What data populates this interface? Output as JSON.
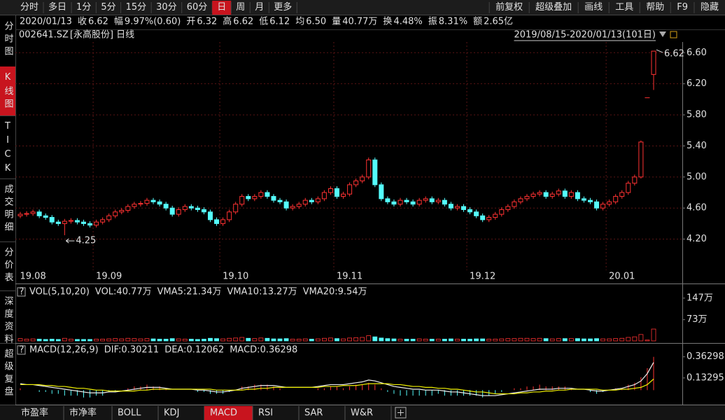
{
  "toolbar": {
    "periods": [
      "分时",
      "多日",
      "1分",
      "5分",
      "15分",
      "30分",
      "60分",
      "日",
      "周",
      "月",
      "更多"
    ],
    "active": 7,
    "tools": [
      "前复权",
      "超级叠加",
      "画线",
      "工具",
      "帮助",
      "F9",
      "隐藏"
    ]
  },
  "info": {
    "date": "2020/01/13",
    "items": [
      {
        "k": "收",
        "v": "6.62",
        "color": "#ff3232"
      },
      {
        "k": "幅",
        "v": "9.97%(0.60)",
        "color": "#ff3232"
      },
      {
        "k": "开",
        "v": "6.32",
        "color": "#ff3232"
      },
      {
        "k": "高",
        "v": "6.62",
        "color": "#ff3232"
      },
      {
        "k": "低",
        "v": "6.12",
        "color": "#ff3232"
      },
      {
        "k": "均",
        "v": "6.50",
        "color": "#ff3232"
      },
      {
        "k": "量",
        "v": "40.77万",
        "color": "#e0e0e0"
      },
      {
        "k": "换",
        "v": "4.48%",
        "color": "#e0e0e0"
      },
      {
        "k": "振",
        "v": "8.31%",
        "color": "#e0e0e0"
      },
      {
        "k": "额",
        "v": "2.65亿",
        "color": "#e0e0e0"
      }
    ]
  },
  "header": {
    "code": "002641.SZ",
    "name": "[永高股份]",
    "period": "日线",
    "range": "2019/08/15-2020/01/13(101日)"
  },
  "side_tabs": {
    "items": [
      "分时图",
      "K线图",
      "TICK",
      "成交明细",
      "分价表",
      "深度资料",
      "超级复盘"
    ],
    "active": 1
  },
  "bottom_tabs": {
    "items": [
      "市盈率",
      "市净率",
      "BOLL",
      "KDJ",
      "MACD",
      "RSI",
      "SAR",
      "W&R"
    ],
    "active": 4
  },
  "chart_data": [
    {
      "type": "candlestick",
      "up_color": "#ff3232",
      "down_color": "#54fcfc",
      "grid": true,
      "ylim": [
        3.8,
        6.9
      ],
      "yticks": [
        {
          "value": 4.2,
          "label": "4.20"
        },
        {
          "value": 4.6,
          "label": "4.60"
        },
        {
          "value": 5.0,
          "label": "5.00"
        },
        {
          "value": 5.4,
          "label": "5.40"
        },
        {
          "value": 5.8,
          "label": "5.80"
        },
        {
          "value": 6.2,
          "label": "6.20"
        },
        {
          "value": 6.6,
          "label": "6.60"
        }
      ],
      "xticks": [
        {
          "value": 0,
          "label": "19.08"
        },
        {
          "value": 12,
          "label": "19.09"
        },
        {
          "value": 32,
          "label": "19.10"
        },
        {
          "value": 50,
          "label": "19.11"
        },
        {
          "value": 71,
          "label": "19.12"
        },
        {
          "value": 93,
          "label": "20.01"
        }
      ],
      "open": [
        4.5,
        4.52,
        4.53,
        4.55,
        4.5,
        4.48,
        4.42,
        4.4,
        4.43,
        4.44,
        4.42,
        4.4,
        4.38,
        4.42,
        4.45,
        4.5,
        4.55,
        4.57,
        4.62,
        4.65,
        4.66,
        4.7,
        4.68,
        4.65,
        4.6,
        4.52,
        4.58,
        4.62,
        4.6,
        4.58,
        4.55,
        4.45,
        4.4,
        4.45,
        4.55,
        4.65,
        4.75,
        4.72,
        4.75,
        4.8,
        4.75,
        4.7,
        4.68,
        4.6,
        4.62,
        4.65,
        4.7,
        4.68,
        4.72,
        4.8,
        4.85,
        4.75,
        4.78,
        4.9,
        4.95,
        5.0,
        5.22,
        4.9,
        4.72,
        4.68,
        4.65,
        4.7,
        4.68,
        4.65,
        4.7,
        4.72,
        4.68,
        4.7,
        4.65,
        4.6,
        4.62,
        4.58,
        4.55,
        4.5,
        4.45,
        4.48,
        4.52,
        4.58,
        4.62,
        4.68,
        4.72,
        4.75,
        4.78,
        4.8,
        4.75,
        4.78,
        4.82,
        4.75,
        4.8,
        4.72,
        4.7,
        4.68,
        4.6,
        4.65,
        4.68,
        4.75,
        4.8,
        4.92,
        5.0,
        6.02,
        6.32
      ],
      "high": [
        4.55,
        4.56,
        4.58,
        4.58,
        4.53,
        4.51,
        4.45,
        4.46,
        4.47,
        4.47,
        4.45,
        4.43,
        4.45,
        4.48,
        4.53,
        4.58,
        4.6,
        4.65,
        4.68,
        4.69,
        4.73,
        4.73,
        4.71,
        4.68,
        4.63,
        4.61,
        4.65,
        4.65,
        4.63,
        4.61,
        4.58,
        4.48,
        4.48,
        4.58,
        4.68,
        4.78,
        4.78,
        4.78,
        4.83,
        4.83,
        4.78,
        4.73,
        4.71,
        4.65,
        4.68,
        4.73,
        4.73,
        4.75,
        4.83,
        4.88,
        4.88,
        4.81,
        4.93,
        4.98,
        5.03,
        5.25,
        5.25,
        4.93,
        4.75,
        4.71,
        4.73,
        4.73,
        4.71,
        4.73,
        4.75,
        4.75,
        4.73,
        4.73,
        4.68,
        4.65,
        4.65,
        4.61,
        4.58,
        4.53,
        4.51,
        4.55,
        4.61,
        4.65,
        4.71,
        4.75,
        4.78,
        4.81,
        4.83,
        4.83,
        4.81,
        4.85,
        4.85,
        4.83,
        4.83,
        4.75,
        4.73,
        4.71,
        4.68,
        4.71,
        4.78,
        4.83,
        4.95,
        5.03,
        5.47,
        6.02,
        6.62
      ],
      "low": [
        4.47,
        4.49,
        4.5,
        4.47,
        4.45,
        4.39,
        4.37,
        4.25,
        4.4,
        4.39,
        4.37,
        4.35,
        4.35,
        4.39,
        4.42,
        4.47,
        4.52,
        4.54,
        4.59,
        4.62,
        4.63,
        4.65,
        4.62,
        4.57,
        4.49,
        4.49,
        4.55,
        4.57,
        4.55,
        4.52,
        4.42,
        4.37,
        4.37,
        4.42,
        4.52,
        4.62,
        4.69,
        4.69,
        4.72,
        4.72,
        4.67,
        4.65,
        4.57,
        4.57,
        4.59,
        4.62,
        4.65,
        4.65,
        4.69,
        4.77,
        4.72,
        4.72,
        4.75,
        4.87,
        4.92,
        4.97,
        4.87,
        4.69,
        4.65,
        4.62,
        4.62,
        4.65,
        4.62,
        4.62,
        4.67,
        4.65,
        4.65,
        4.62,
        4.57,
        4.57,
        4.55,
        4.52,
        4.47,
        4.42,
        4.42,
        4.45,
        4.49,
        4.55,
        4.59,
        4.65,
        4.69,
        4.72,
        4.75,
        4.72,
        4.72,
        4.75,
        4.72,
        4.72,
        4.69,
        4.67,
        4.65,
        4.57,
        4.57,
        4.62,
        4.65,
        4.72,
        4.77,
        4.89,
        4.98,
        6.02,
        6.12
      ],
      "close": [
        4.52,
        4.53,
        4.55,
        4.5,
        4.48,
        4.42,
        4.4,
        4.43,
        4.44,
        4.42,
        4.4,
        4.38,
        4.42,
        4.45,
        4.5,
        4.55,
        4.57,
        4.62,
        4.65,
        4.66,
        4.7,
        4.68,
        4.65,
        4.6,
        4.52,
        4.58,
        4.62,
        4.6,
        4.58,
        4.55,
        4.45,
        4.4,
        4.45,
        4.55,
        4.65,
        4.75,
        4.72,
        4.75,
        4.8,
        4.75,
        4.7,
        4.68,
        4.6,
        4.62,
        4.65,
        4.7,
        4.68,
        4.72,
        4.8,
        4.85,
        4.75,
        4.78,
        4.9,
        4.95,
        5.0,
        5.22,
        4.9,
        4.72,
        4.68,
        4.65,
        4.7,
        4.68,
        4.65,
        4.7,
        4.72,
        4.68,
        4.7,
        4.65,
        4.6,
        4.62,
        4.58,
        4.55,
        4.5,
        4.45,
        4.48,
        4.52,
        4.58,
        4.62,
        4.68,
        4.72,
        4.75,
        4.78,
        4.8,
        4.75,
        4.78,
        4.82,
        4.75,
        4.8,
        4.72,
        4.7,
        4.68,
        4.6,
        4.65,
        4.68,
        4.75,
        4.8,
        4.92,
        5.0,
        5.45,
        6.02,
        6.62
      ]
    },
    {
      "type": "volume",
      "legend": [
        {
          "text": "VOL(5,10,20)",
          "color": "#e0e0e0"
        },
        {
          "text": "VOL:40.77万",
          "color": "#e0e0e0"
        },
        {
          "text": "VMA5:21.34万",
          "color": "#e0e0e0"
        },
        {
          "text": "VMA10:13.27万",
          "color": "#f0f000"
        },
        {
          "text": "VMA20:9.54万",
          "color": "#ff32ff"
        }
      ],
      "ylim": [
        0,
        166
      ],
      "yticks": [
        {
          "value": 73,
          "label": "73万"
        },
        {
          "value": 147,
          "label": "147万"
        }
      ],
      "values": [
        8,
        6,
        7,
        6,
        5,
        6,
        5,
        9,
        6,
        5,
        5,
        5,
        6,
        6,
        7,
        8,
        7,
        9,
        8,
        7,
        8,
        7,
        6,
        6,
        8,
        7,
        6,
        6,
        5,
        6,
        9,
        8,
        7,
        9,
        10,
        12,
        9,
        8,
        10,
        9,
        7,
        7,
        8,
        6,
        6,
        7,
        6,
        7,
        9,
        10,
        8,
        7,
        10,
        11,
        12,
        18,
        14,
        10,
        8,
        7,
        6,
        6,
        6,
        7,
        6,
        6,
        6,
        6,
        7,
        6,
        6,
        6,
        7,
        7,
        6,
        6,
        7,
        8,
        8,
        9,
        9,
        8,
        9,
        8,
        7,
        8,
        8,
        8,
        8,
        7,
        7,
        8,
        7,
        7,
        8,
        9,
        12,
        14,
        22,
        3,
        40.77
      ]
    },
    {
      "type": "macd",
      "legend": [
        {
          "text": "MACD(12,26,9)",
          "color": "#e0e0e0"
        },
        {
          "text": "DIF:0.30211",
          "color": "#e0e0e0"
        },
        {
          "text": "DEA:0.12062",
          "color": "#f0f000"
        },
        {
          "text": "MACD:0.36298",
          "color": "#ff32ff"
        }
      ],
      "ylim": [
        -0.15,
        0.46
      ],
      "yticks": [
        0.13295,
        0.36298
      ],
      "series": [
        {
          "color": "#f0f0f0",
          "values": [
            0.07,
            0.06,
            0.06,
            0.05,
            0.04,
            0.03,
            0.02,
            0.01,
            0,
            -0.01,
            -0.02,
            -0.03,
            -0.03,
            -0.03,
            -0.02,
            -0.02,
            -0.01,
            0,
            0.01,
            0.02,
            0.03,
            0.03,
            0.03,
            0.02,
            0.01,
            0.01,
            0.01,
            0.01,
            0,
            0,
            -0.01,
            -0.02,
            -0.02,
            -0.01,
            0,
            0.02,
            0.03,
            0.04,
            0.05,
            0.05,
            0.05,
            0.04,
            0.03,
            0.03,
            0.03,
            0.03,
            0.03,
            0.04,
            0.05,
            0.06,
            0.06,
            0.06,
            0.07,
            0.08,
            0.09,
            0.11,
            0.1,
            0.08,
            0.06,
            0.04,
            0.03,
            0.02,
            0.01,
            0.01,
            0,
            0,
            0,
            -0.01,
            -0.02,
            -0.02,
            -0.03,
            -0.04,
            -0.05,
            -0.06,
            -0.06,
            -0.06,
            -0.05,
            -0.04,
            -0.03,
            -0.02,
            -0.01,
            0,
            0.01,
            0.01,
            0.01,
            0.02,
            0.02,
            0.02,
            0.01,
            0.01,
            0,
            -0.01,
            -0.01,
            0,
            0.01,
            0.02,
            0.04,
            0.06,
            0.1,
            0.18,
            0.30211
          ]
        },
        {
          "color": "#f0f000",
          "values": [
            0.06,
            0.06,
            0.06,
            0.06,
            0.05,
            0.05,
            0.04,
            0.04,
            0.03,
            0.02,
            0.02,
            0.01,
            0,
            0,
            -0.01,
            -0.01,
            -0.01,
            -0.01,
            -0.01,
            0,
            0,
            0.01,
            0.01,
            0.01,
            0.01,
            0.01,
            0.01,
            0.01,
            0.01,
            0.01,
            0.01,
            0,
            0,
            0,
            0,
            0,
            0.01,
            0.01,
            0.02,
            0.02,
            0.03,
            0.03,
            0.03,
            0.03,
            0.03,
            0.03,
            0.03,
            0.03,
            0.04,
            0.04,
            0.04,
            0.05,
            0.05,
            0.05,
            0.06,
            0.07,
            0.07,
            0.07,
            0.07,
            0.06,
            0.06,
            0.05,
            0.04,
            0.04,
            0.03,
            0.03,
            0.02,
            0.02,
            0.01,
            0.01,
            0,
            -0.01,
            -0.02,
            -0.02,
            -0.03,
            -0.04,
            -0.04,
            -0.04,
            -0.04,
            -0.03,
            -0.03,
            -0.02,
            -0.02,
            -0.01,
            -0.01,
            0,
            0,
            0.01,
            0.01,
            0.01,
            0.01,
            0.01,
            0,
            0,
            0,
            0.01,
            0.01,
            0.02,
            0.03,
            0.06,
            0.12062
          ]
        }
      ],
      "histogram": {
        "up_color": "#ff3232",
        "down_color": "#54fcfc",
        "values": [
          0.02,
          0,
          0,
          -0.02,
          -0.02,
          -0.04,
          -0.04,
          -0.06,
          -0.06,
          -0.06,
          -0.08,
          -0.08,
          -0.06,
          -0.06,
          -0.02,
          -0.02,
          0,
          0.02,
          0.04,
          0.04,
          0.06,
          0.04,
          0.04,
          0.02,
          0,
          0,
          0,
          0,
          -0.02,
          -0.02,
          -0.04,
          -0.04,
          -0.04,
          -0.02,
          0,
          0.04,
          0.04,
          0.06,
          0.06,
          0.06,
          0.04,
          0.02,
          0,
          0,
          0,
          0,
          0,
          0.02,
          0.02,
          0.04,
          0.04,
          0.02,
          0.04,
          0.06,
          0.06,
          0.08,
          0.06,
          0.02,
          -0.02,
          -0.04,
          -0.06,
          -0.06,
          -0.06,
          -0.06,
          -0.06,
          -0.06,
          -0.04,
          -0.06,
          -0.06,
          -0.06,
          -0.06,
          -0.06,
          -0.06,
          -0.08,
          -0.06,
          -0.04,
          -0.02,
          0,
          0.02,
          0.02,
          0.04,
          0.04,
          0.06,
          0.04,
          0.04,
          0.04,
          0.04,
          0.02,
          0,
          0,
          -0.02,
          -0.04,
          -0.02,
          0,
          0.02,
          0.02,
          0.06,
          0.08,
          0.14,
          0.24,
          0.36298
        ]
      }
    }
  ]
}
